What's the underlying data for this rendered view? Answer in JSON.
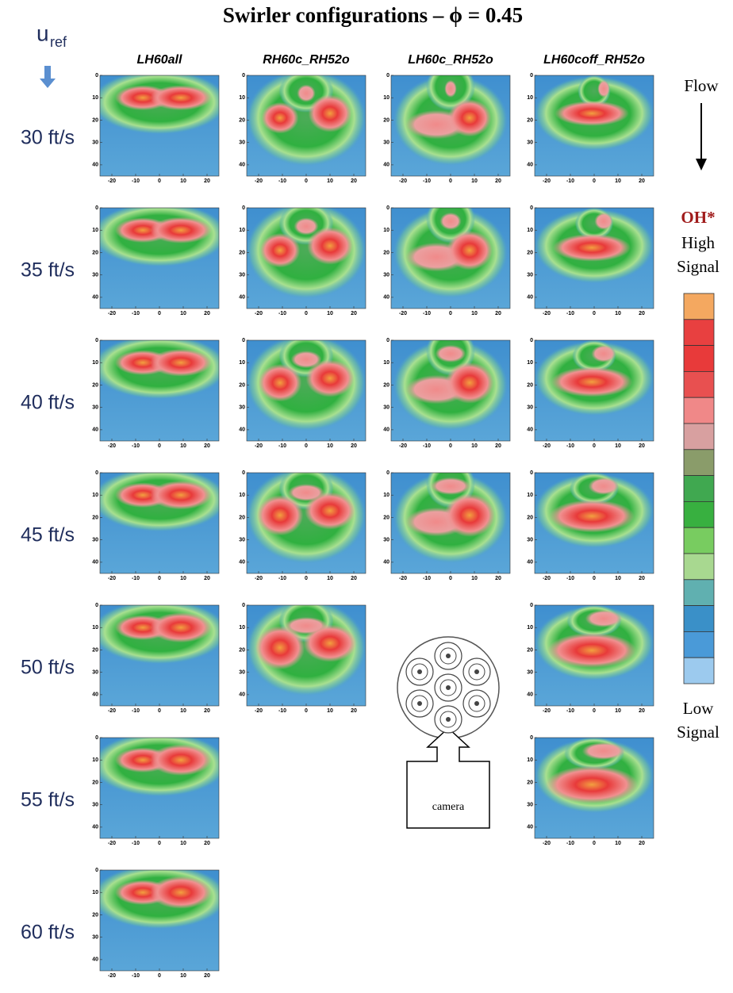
{
  "title": "Swirler configurations – ϕ = 0.45",
  "velocity_label": {
    "main": "u",
    "subscript": "ref"
  },
  "columns": [
    "LH60all",
    "RH60c_RH52o",
    "LH60c_RH52o",
    "LH60coff_RH52o"
  ],
  "rows": [
    "30 ft/s",
    "35 ft/s",
    "40 ft/s",
    "45 ft/s",
    "50 ft/s",
    "55 ft/s",
    "60 ft/s"
  ],
  "panel_axes": {
    "xticks": [
      -20,
      -10,
      0,
      10,
      20
    ],
    "yticks": [
      0,
      10,
      20,
      30,
      40
    ]
  },
  "legend": {
    "flow": "Flow",
    "species": "OH*",
    "high": [
      "High",
      "Signal"
    ],
    "low": [
      "Low",
      "Signal"
    ]
  },
  "diagram": {
    "camera": "camera"
  }
}
